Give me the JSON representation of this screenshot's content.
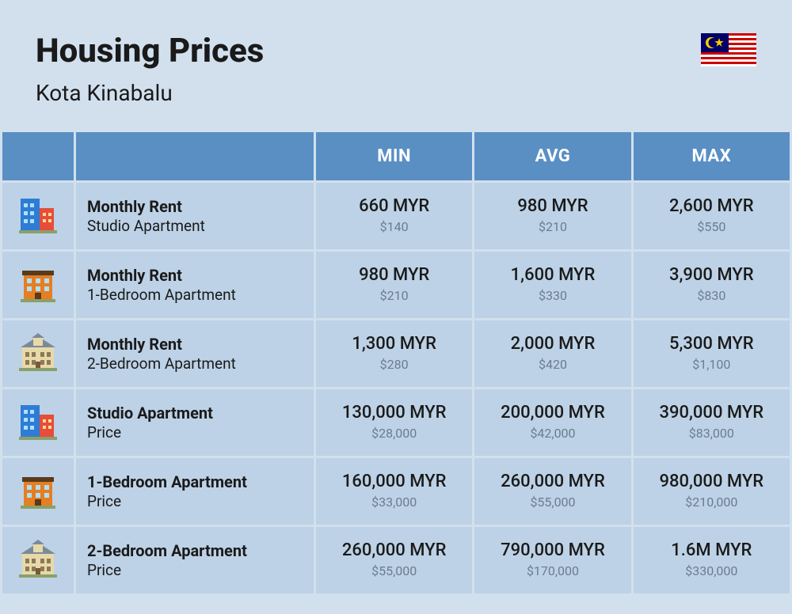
{
  "header": {
    "title": "Housing Prices",
    "subtitle": "Kota Kinabalu",
    "flag": "malaysia"
  },
  "table": {
    "header_bg": "#5a8fc4",
    "header_color": "#ffffff",
    "cell_bg": "#bdd2e6",
    "page_bg": "#d2e0ee",
    "columns": [
      "MIN",
      "AVG",
      "MAX"
    ],
    "rows": [
      {
        "icon": "studio",
        "title": "Monthly Rent",
        "sub": "Studio Apartment",
        "min": {
          "main": "660 MYR",
          "sub": "$140"
        },
        "avg": {
          "main": "980 MYR",
          "sub": "$210"
        },
        "max": {
          "main": "2,600 MYR",
          "sub": "$550"
        }
      },
      {
        "icon": "onebr",
        "title": "Monthly Rent",
        "sub": "1-Bedroom Apartment",
        "min": {
          "main": "980 MYR",
          "sub": "$210"
        },
        "avg": {
          "main": "1,600 MYR",
          "sub": "$330"
        },
        "max": {
          "main": "3,900 MYR",
          "sub": "$830"
        }
      },
      {
        "icon": "twobr",
        "title": "Monthly Rent",
        "sub": "2-Bedroom Apartment",
        "min": {
          "main": "1,300 MYR",
          "sub": "$280"
        },
        "avg": {
          "main": "2,000 MYR",
          "sub": "$420"
        },
        "max": {
          "main": "5,300 MYR",
          "sub": "$1,100"
        }
      },
      {
        "icon": "studio",
        "title": "Studio Apartment",
        "sub": "Price",
        "min": {
          "main": "130,000 MYR",
          "sub": "$28,000"
        },
        "avg": {
          "main": "200,000 MYR",
          "sub": "$42,000"
        },
        "max": {
          "main": "390,000 MYR",
          "sub": "$83,000"
        }
      },
      {
        "icon": "onebr",
        "title": "1-Bedroom Apartment",
        "sub": "Price",
        "min": {
          "main": "160,000 MYR",
          "sub": "$33,000"
        },
        "avg": {
          "main": "260,000 MYR",
          "sub": "$55,000"
        },
        "max": {
          "main": "980,000 MYR",
          "sub": "$210,000"
        }
      },
      {
        "icon": "twobr",
        "title": "2-Bedroom Apartment",
        "sub": "Price",
        "min": {
          "main": "260,000 MYR",
          "sub": "$55,000"
        },
        "avg": {
          "main": "790,000 MYR",
          "sub": "$170,000"
        },
        "max": {
          "main": "1.6M MYR",
          "sub": "$330,000"
        }
      }
    ]
  },
  "icons": {
    "studio_colors": {
      "left": "#2e7cd6",
      "right": "#e74c3c"
    },
    "onebr_colors": {
      "body": "#e67e22",
      "roof": "#5a3a1a"
    },
    "twobr_colors": {
      "body": "#e8d9a8",
      "roof": "#7a8a9a"
    }
  }
}
